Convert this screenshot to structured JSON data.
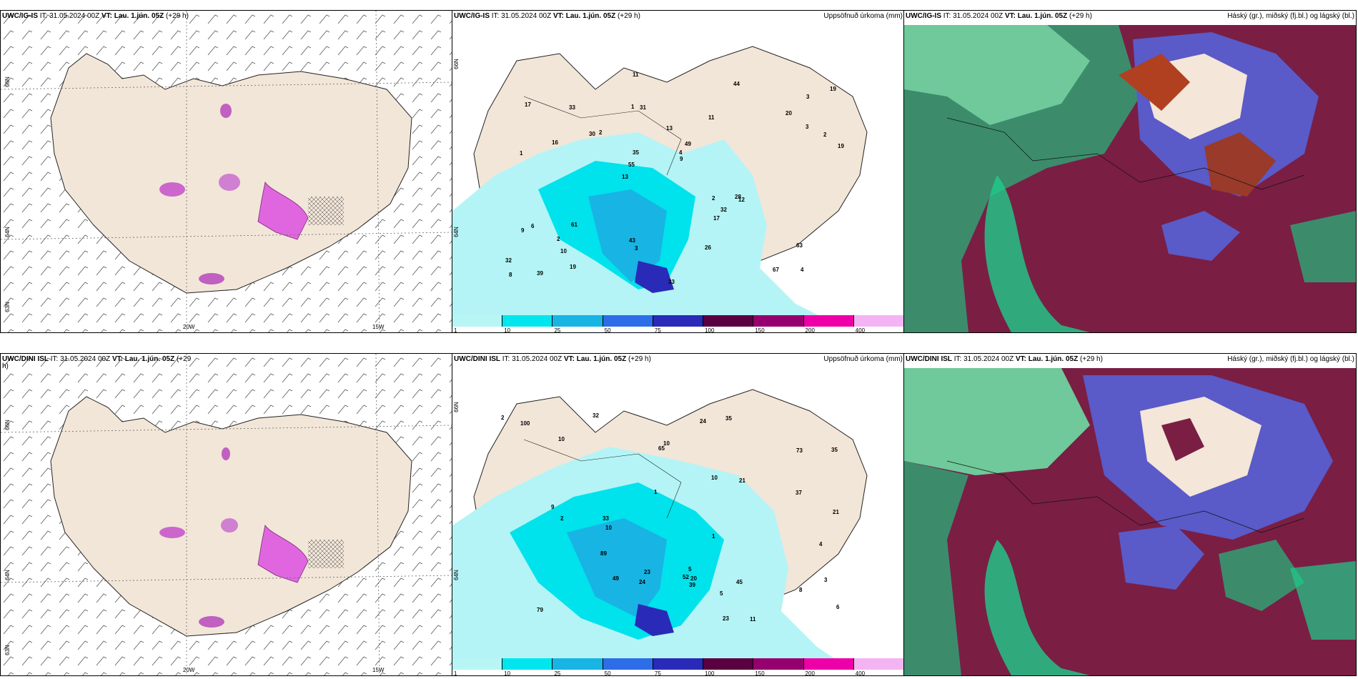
{
  "top": {
    "wind": {
      "model_prefix": "UWC/IG-IS",
      "it_label": " IT: 31.05.2024 00Z ",
      "vt_label": "VT: Lau. 1.jún. 05Z",
      "lead": " (+29 h)",
      "lat_labels": [
        "66N",
        "64N",
        "63N"
      ],
      "lon_labels": [
        "20W",
        "15W"
      ]
    },
    "precip": {
      "model_prefix": "UWC/IG-IS",
      "it_label": " IT: 31.05.2024 00Z ",
      "vt_label": "VT: Lau. 1.jún. 05Z",
      "lead": " (+29 h)",
      "right_title": "Uppsöfnuð úrkoma (mm)",
      "lat_labels": [
        "66N",
        "64N"
      ]
    },
    "clouds": {
      "model_prefix": "UWC/IG-IS",
      "it_label": " IT: 31.05.2024 00Z ",
      "vt_label": "VT: Lau. 1.jún. 05Z",
      "lead": " (+29 h)",
      "right_title": "Háský (gr.), miðský (fj.bl.) og lágský (bl.)"
    }
  },
  "bottom": {
    "wind": {
      "model_prefix": "UWC/DINI ISL",
      "it_label": " IT: 31.05.2024 00Z ",
      "vt_label": "VT: Lau. 1.jún. 05Z",
      "lead": " (+29",
      "lead2": "h)",
      "lat_labels": [
        "66N",
        "64N",
        "63N"
      ],
      "lon_labels": [
        "20W",
        "15W"
      ]
    },
    "precip": {
      "model_prefix": "UWC/DINI ISL",
      "it_label": " IT: 31.05.2024 00Z ",
      "vt_label": "VT: Lau. 1.jún. 05Z",
      "lead": " (+29 h)",
      "right_title": "Uppsöfnuð úrkoma (mm)",
      "lat_labels": [
        "66N",
        "64N"
      ]
    },
    "clouds": {
      "model_prefix": "UWC/DINI ISL",
      "it_label": " IT: 31.05.2024 00Z ",
      "vt_label": "VT: Lau. 1.jún. 05Z",
      "lead": " (+29 h)",
      "right_title": "Háský (gr.), miðský (fj.bl.) og lágský (bl.)"
    }
  },
  "colorbar": {
    "ticks": [
      "1",
      "10",
      "25",
      "50",
      "75",
      "100",
      "150",
      "200",
      "400"
    ],
    "colors": [
      "#b8f6f6",
      "#00e6ee",
      "#18b4e4",
      "#2d6ee8",
      "#2a2ab8",
      "#5a0040",
      "#96006e",
      "#ee00a8",
      "#f4b4f4"
    ]
  },
  "colors": {
    "land": "#f2e6d8",
    "precip_light": "#b4f4f6",
    "precip_mid": "#00e2ec",
    "cloud_high": "#7a1e44",
    "cloud_mid": "#5a5ac8",
    "cloud_low": "#3c8c6c"
  },
  "precip_values_top": [
    "4",
    "1",
    "3",
    "13",
    "11",
    "39",
    "1",
    "13",
    "6",
    "2",
    "32",
    "10",
    "31",
    "49",
    "12",
    "17",
    "11",
    "19",
    "2",
    "3",
    "55",
    "43",
    "35",
    "33",
    "44",
    "61",
    "67",
    "63",
    "28",
    "33",
    "30",
    "16",
    "17",
    "19",
    "2",
    "4",
    "8",
    "3",
    "9",
    "9",
    "20",
    "19",
    "32",
    "26",
    "2"
  ],
  "precip_values_bottom": [
    "8",
    "3",
    "5",
    "24",
    "45",
    "21",
    "11",
    "6",
    "10",
    "5",
    "9",
    "33",
    "35",
    "52",
    "23",
    "79",
    "65",
    "73",
    "49",
    "32",
    "35",
    "23",
    "89",
    "100",
    "24",
    "37",
    "10",
    "4",
    "10",
    "39",
    "20",
    "21",
    "10",
    "1",
    "2",
    "2",
    "1"
  ]
}
